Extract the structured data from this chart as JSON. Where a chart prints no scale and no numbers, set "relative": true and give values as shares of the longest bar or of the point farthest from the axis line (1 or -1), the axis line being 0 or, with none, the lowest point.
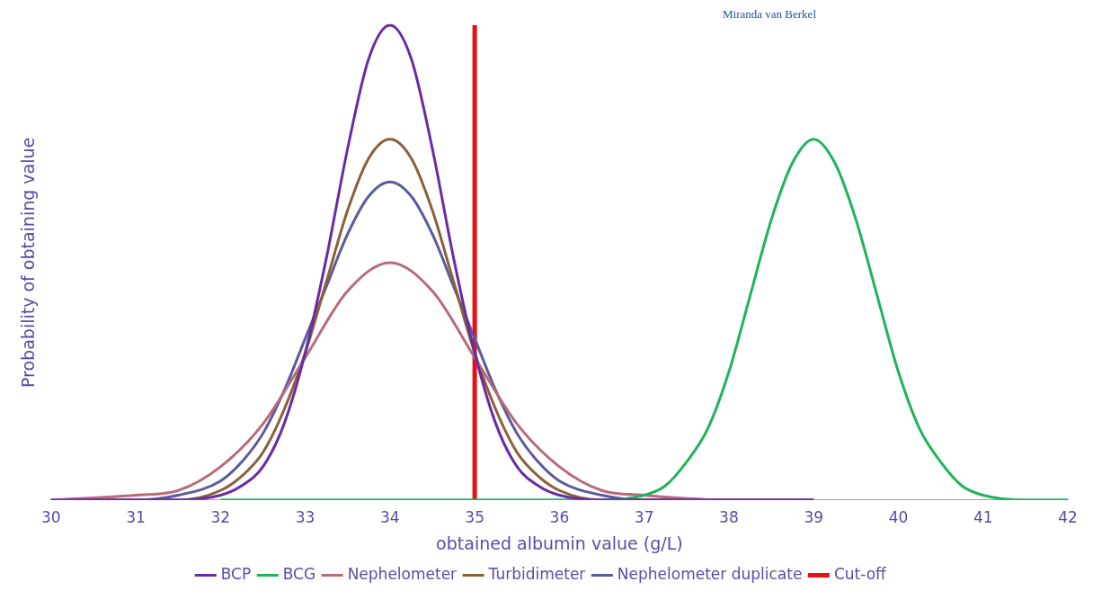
{
  "chart_data": {
    "type": "line",
    "relative": true,
    "xlabel": "obtained albumin value (g/L)",
    "ylabel": "Probability of obtaining value",
    "xlim": [
      30,
      42
    ],
    "xticks": [
      30,
      31,
      32,
      33,
      34,
      35,
      36,
      37,
      38,
      39,
      40,
      41,
      42
    ],
    "grid": false,
    "legend": "bottom",
    "marker": "none",
    "line_style": "solid",
    "annotations": [
      "Miranda van Berkel"
    ],
    "series": [
      {
        "name": "BCP",
        "color": "#6a2aa8",
        "x": [
          30,
          31.5,
          32,
          32.25,
          32.5,
          32.75,
          33,
          33.25,
          33.5,
          33.75,
          34,
          34.25,
          34.5,
          34.75,
          35,
          35.25,
          35.5,
          35.75,
          36,
          36.5,
          39
        ],
        "values": [
          0,
          0,
          0.01,
          0.03,
          0.07,
          0.16,
          0.31,
          0.51,
          0.74,
          0.93,
          1,
          0.93,
          0.74,
          0.51,
          0.31,
          0.16,
          0.07,
          0.03,
          0.01,
          0,
          0
        ]
      },
      {
        "name": "BCG",
        "color": "#1fb35a",
        "x": [
          32,
          36.5,
          37,
          37.25,
          37.5,
          37.75,
          38,
          38.25,
          38.5,
          38.75,
          39,
          39.25,
          39.5,
          39.75,
          40,
          40.25,
          40.5,
          40.75,
          41,
          41.5,
          42
        ],
        "values": [
          0,
          0,
          0.01,
          0.03,
          0.08,
          0.15,
          0.27,
          0.43,
          0.59,
          0.71,
          0.76,
          0.71,
          0.59,
          0.43,
          0.27,
          0.15,
          0.08,
          0.03,
          0.01,
          0,
          0
        ]
      },
      {
        "name": "Nephelometer",
        "color": "#b86b78",
        "x": [
          30,
          31,
          31.5,
          32,
          32.5,
          33,
          33.5,
          34,
          34.5,
          35,
          35.5,
          36,
          36.5,
          37,
          38,
          39
        ],
        "values": [
          0,
          0.01,
          0.02,
          0.07,
          0.16,
          0.3,
          0.44,
          0.5,
          0.44,
          0.3,
          0.16,
          0.07,
          0.02,
          0.01,
          0,
          0
        ]
      },
      {
        "name": "Turbidimeter",
        "color": "#8a6038",
        "x": [
          30,
          31.5,
          32,
          32.25,
          32.5,
          32.75,
          33,
          33.25,
          33.5,
          33.75,
          34,
          34.25,
          34.5,
          34.75,
          35,
          35.25,
          35.5,
          35.75,
          36,
          36.5,
          39
        ],
        "values": [
          0,
          0,
          0.02,
          0.05,
          0.1,
          0.19,
          0.31,
          0.46,
          0.61,
          0.72,
          0.76,
          0.72,
          0.61,
          0.46,
          0.31,
          0.19,
          0.1,
          0.05,
          0.02,
          0,
          0
        ]
      },
      {
        "name": "Nephelometer duplicate",
        "color": "#5a5aa0",
        "x": [
          30,
          31,
          31.5,
          32,
          32.25,
          32.5,
          32.75,
          33,
          33.25,
          33.5,
          33.75,
          34,
          34.25,
          34.5,
          34.75,
          35,
          35.25,
          35.5,
          35.75,
          36,
          36.5,
          37,
          39
        ],
        "values": [
          0,
          0,
          0.01,
          0.04,
          0.08,
          0.14,
          0.23,
          0.34,
          0.45,
          0.56,
          0.64,
          0.67,
          0.64,
          0.56,
          0.45,
          0.34,
          0.23,
          0.14,
          0.08,
          0.04,
          0.01,
          0,
          0
        ]
      },
      {
        "name": "Cut-off",
        "color": "#e81010",
        "x": [
          35,
          35
        ],
        "values": [
          0,
          1
        ]
      }
    ]
  }
}
